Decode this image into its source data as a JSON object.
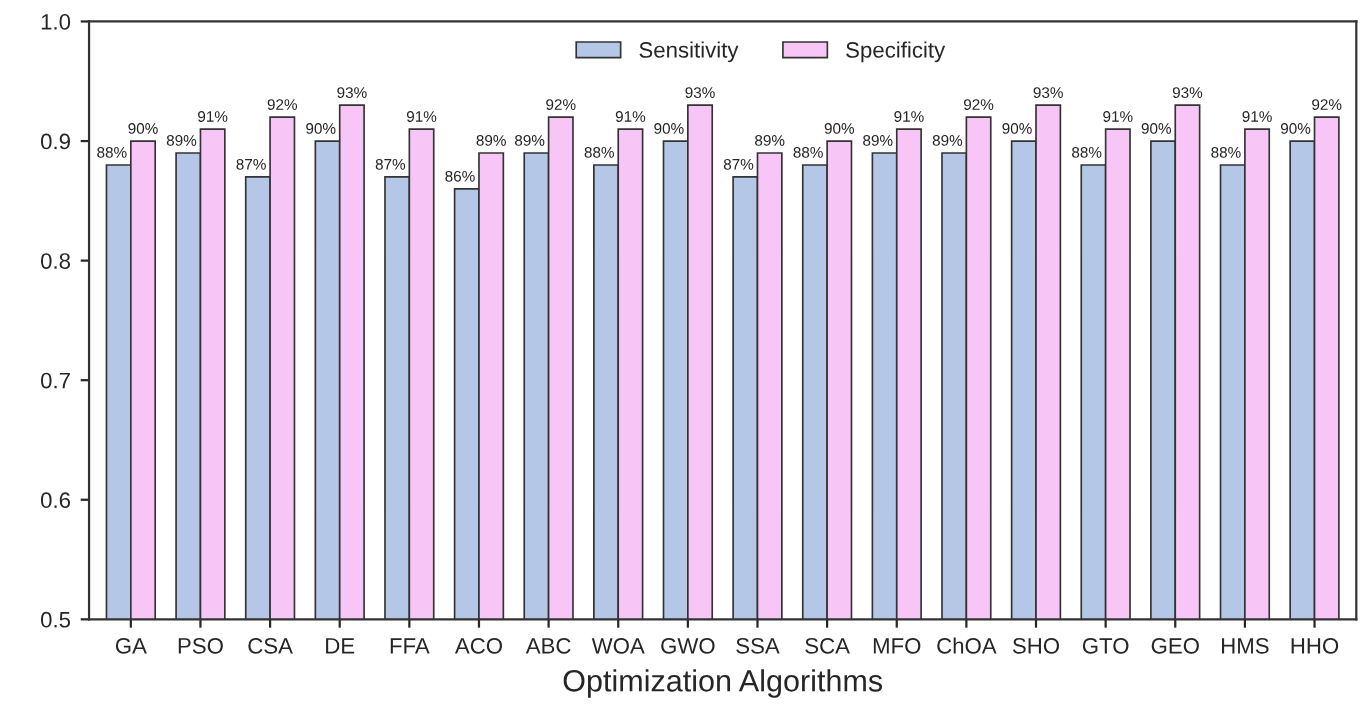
{
  "chart_data": {
    "type": "bar",
    "xlabel": "Optimization Algorithms",
    "categories": [
      "GA",
      "PSO",
      "CSA",
      "DE",
      "FFA",
      "ACO",
      "ABC",
      "WOA",
      "GWO",
      "SSA",
      "SCA",
      "MFO",
      "ChOA",
      "SHO",
      "GTO",
      "GEO",
      "HMS",
      "HHO"
    ],
    "series": [
      {
        "name": "Sensitivity",
        "color": "#b4c7e7",
        "values": [
          0.88,
          0.89,
          0.87,
          0.9,
          0.87,
          0.86,
          0.89,
          0.88,
          0.9,
          0.87,
          0.88,
          0.89,
          0.89,
          0.9,
          0.88,
          0.9,
          0.88,
          0.9
        ],
        "value_labels": [
          "88%",
          "89%",
          "87%",
          "90%",
          "87%",
          "86%",
          "89%",
          "88%",
          "90%",
          "87%",
          "88%",
          "89%",
          "89%",
          "90%",
          "88%",
          "90%",
          "88%",
          "90%"
        ]
      },
      {
        "name": "Specificity",
        "color": "#f7c6f7",
        "values": [
          0.9,
          0.91,
          0.92,
          0.93,
          0.91,
          0.89,
          0.92,
          0.91,
          0.93,
          0.89,
          0.9,
          0.91,
          0.92,
          0.93,
          0.91,
          0.93,
          0.91,
          0.92
        ],
        "value_labels": [
          "90%",
          "91%",
          "92%",
          "93%",
          "91%",
          "89%",
          "92%",
          "91%",
          "93%",
          "89%",
          "90%",
          "91%",
          "92%",
          "93%",
          "91%",
          "93%",
          "91%",
          "92%"
        ]
      }
    ],
    "ylim": [
      0.5,
      1.0
    ],
    "yticks": [
      0.5,
      0.6,
      0.7,
      0.8,
      0.9,
      {
        "value": 1.0,
        "label": "1.0"
      }
    ],
    "legend": "top",
    "grid": false
  }
}
